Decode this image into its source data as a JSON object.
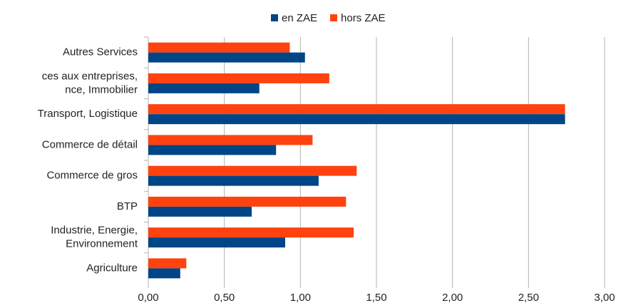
{
  "chart_data": {
    "type": "barh",
    "categories": [
      [
        "Autres Services"
      ],
      [
        "ces aux entreprises,",
        "nce, Immobilier"
      ],
      [
        "Transport, Logistique"
      ],
      [
        "Commerce de détail"
      ],
      [
        "Commerce de gros"
      ],
      [
        "BTP"
      ],
      [
        "Industrie, Energie,",
        "Environnement"
      ],
      [
        "Agriculture"
      ]
    ],
    "series": [
      {
        "name": "en ZAE",
        "color": "#004586",
        "values": [
          1.03,
          0.73,
          2.74,
          0.84,
          1.12,
          0.68,
          0.9,
          0.21
        ]
      },
      {
        "name": "hors ZAE",
        "color": "#ff420e",
        "values": [
          0.93,
          1.19,
          2.74,
          1.08,
          1.37,
          1.3,
          1.35,
          0.25
        ]
      }
    ],
    "xlim": [
      0,
      3
    ],
    "xticks": [
      {
        "value": 0,
        "label": "0,00"
      },
      {
        "value": 0.5,
        "label": "0,50"
      },
      {
        "value": 1,
        "label": "1,00"
      },
      {
        "value": 1.5,
        "label": "1,50"
      },
      {
        "value": 2,
        "label": "2,00"
      },
      {
        "value": 2.5,
        "label": "2,50"
      },
      {
        "value": 3,
        "label": "3,00"
      }
    ],
    "grid": true,
    "legend": "top"
  }
}
